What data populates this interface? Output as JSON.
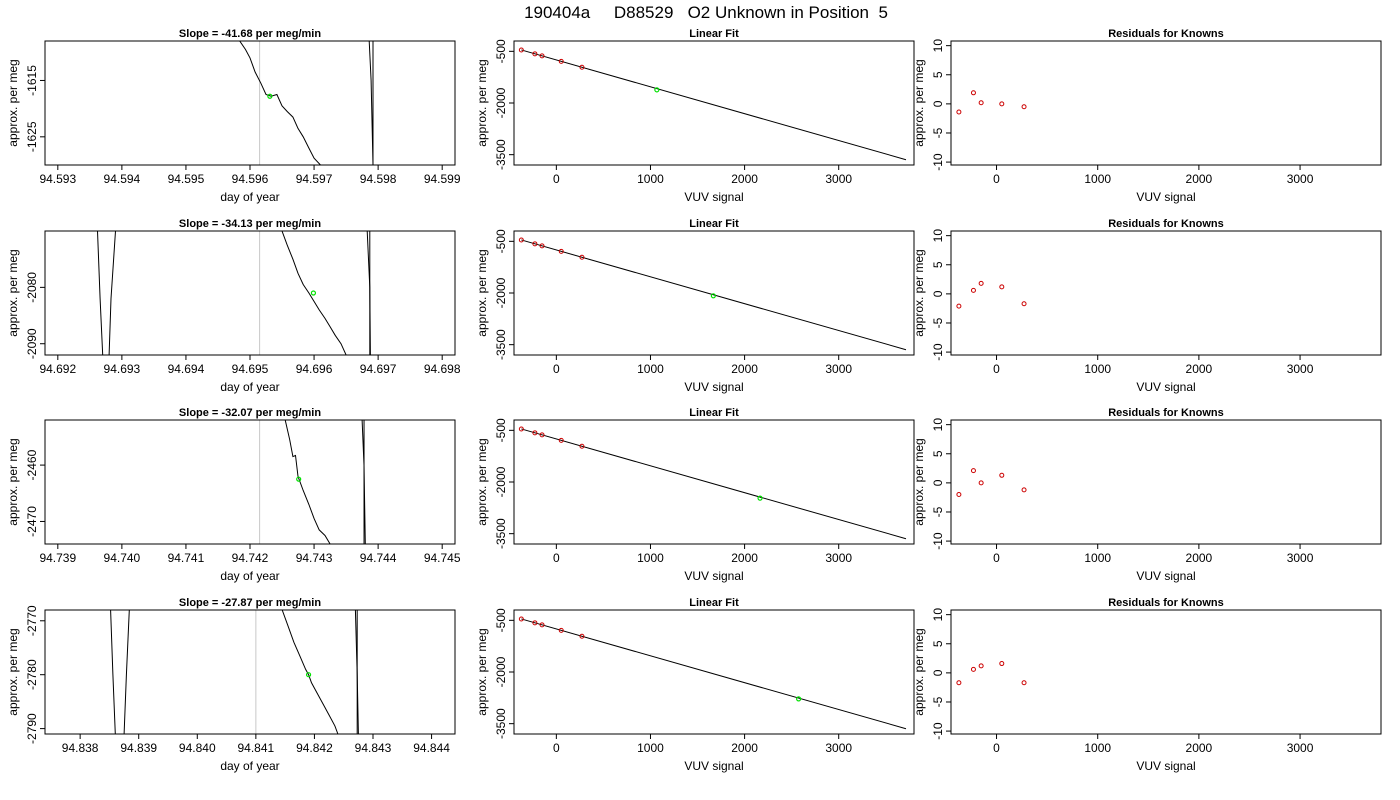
{
  "figure": {
    "title": "190404a     D88529   O2 Unknown in Position  5"
  },
  "colors": {
    "trace": "#000000",
    "unknown_point": "#00e000",
    "known_point": "#cc0000",
    "grey_line": "#c8c8c8"
  },
  "chart_data": [
    {
      "type": "line",
      "row": 0,
      "column": "timeseries",
      "title": "Slope =  -41.68  per meg/min",
      "xlabel": "day of year",
      "ylabel": "approx. per meg",
      "xlim": [
        94.5928,
        94.5992
      ],
      "ylim": [
        -1630,
        -1608
      ],
      "xticks": [
        "94.593",
        "94.594",
        "94.595",
        "94.596",
        "94.597",
        "94.598",
        "94.599"
      ],
      "yticks": [
        "-1615",
        "-1625"
      ],
      "grey_vline": 94.59615,
      "black_vline": 94.59792,
      "trace_segments": [
        [
          [
            94.59584,
            -1608
          ],
          [
            94.59593,
            -1609.5
          ],
          [
            94.596,
            -1611.0
          ],
          [
            94.59608,
            -1613.5
          ],
          [
            94.59617,
            -1615.5
          ],
          [
            94.59625,
            -1617.5
          ],
          [
            94.59633,
            -1617.8
          ],
          [
            94.59642,
            -1617.5
          ],
          [
            94.5965,
            -1619.5
          ],
          [
            94.59658,
            -1620.5
          ],
          [
            94.59667,
            -1621.5
          ],
          [
            94.59675,
            -1623.5
          ],
          [
            94.59683,
            -1625.0
          ],
          [
            94.59692,
            -1627.0
          ],
          [
            94.597,
            -1628.8
          ],
          [
            94.5971,
            -1630
          ]
        ],
        [
          [
            94.59786,
            -1608
          ],
          [
            94.59789,
            -1615
          ],
          [
            94.59792,
            -1630
          ]
        ]
      ],
      "unknown_point": [
        94.59631,
        -1617.8
      ]
    },
    {
      "type": "scatter",
      "row": 0,
      "column": "fit",
      "title": "Linear Fit",
      "xlabel": "VUV signal",
      "ylabel": "approx. per meg",
      "xlim": [
        -450,
        3800
      ],
      "ylim": [
        -3800,
        -200
      ],
      "xticks": [
        "0",
        "1000",
        "2000",
        "3000"
      ],
      "yticks": [
        "-500",
        "-2000",
        "-3500"
      ],
      "fit_line": [
        [
          -372,
          -460
        ],
        [
          3715,
          -3647
        ]
      ],
      "known_points": [
        [
          -372,
          -460
        ],
        [
          -228,
          -572
        ],
        [
          -152,
          -632
        ],
        [
          52,
          -792
        ],
        [
          272,
          -963
        ]
      ],
      "unknown_point": [
        1068,
        -1618
      ]
    },
    {
      "type": "scatter",
      "row": 0,
      "column": "residuals",
      "title": "Residuals for Knowns",
      "xlabel": "VUV signal",
      "ylabel": "approx. per meg",
      "xlim": [
        -450,
        3800
      ],
      "ylim": [
        -10.5,
        10.8
      ],
      "xticks": [
        "0",
        "1000",
        "2000",
        "3000"
      ],
      "yticks": [
        "-10",
        "-5",
        "0",
        "5",
        "10"
      ],
      "known_points": [
        [
          -372,
          -1.4
        ],
        [
          -228,
          1.9
        ],
        [
          -152,
          0.2
        ],
        [
          52,
          0.0
        ],
        [
          272,
          -0.5
        ]
      ]
    },
    {
      "type": "line",
      "row": 1,
      "column": "timeseries",
      "title": "Slope =  -34.13  per meg/min",
      "xlabel": "day of year",
      "ylabel": "approx. per meg",
      "xlim": [
        94.6918,
        94.6982
      ],
      "ylim": [
        -2092,
        -2070
      ],
      "xticks": [
        "94.692",
        "94.693",
        "94.694",
        "94.695",
        "94.696",
        "94.697",
        "94.698"
      ],
      "yticks": [
        "-2080",
        "-2090"
      ],
      "grey_vline": 94.69515,
      "black_vline": 94.69687,
      "trace_segments": [
        [
          [
            94.69262,
            -2070
          ],
          [
            94.69266,
            -2082
          ],
          [
            94.6927,
            -2092
          ]
        ],
        [
          [
            94.6928,
            -2092
          ],
          [
            94.69283,
            -2082
          ],
          [
            94.6929,
            -2070
          ]
        ],
        [
          [
            94.6955,
            -2070
          ],
          [
            94.69558,
            -2072.5
          ],
          [
            94.69567,
            -2075.0
          ],
          [
            94.69575,
            -2077.5
          ],
          [
            94.69583,
            -2079.5
          ],
          [
            94.69592,
            -2081.0
          ],
          [
            94.696,
            -2082.5
          ],
          [
            94.69608,
            -2084.0
          ],
          [
            94.69617,
            -2085.5
          ],
          [
            94.69625,
            -2087.0
          ],
          [
            94.69633,
            -2088.5
          ],
          [
            94.69642,
            -2090.0
          ],
          [
            94.6965,
            -2092
          ]
        ],
        [
          [
            94.69683,
            -2070
          ],
          [
            94.69687,
            -2080
          ],
          [
            94.69688,
            -2092
          ]
        ]
      ],
      "unknown_point": [
        94.69599,
        -2081
      ]
    },
    {
      "type": "scatter",
      "row": 1,
      "column": "fit",
      "title": "Linear Fit",
      "xlabel": "VUV signal",
      "ylabel": "approx. per meg",
      "xlim": [
        -450,
        3800
      ],
      "ylim": [
        -3800,
        -200
      ],
      "xticks": [
        "0",
        "1000",
        "2000",
        "3000"
      ],
      "yticks": [
        "-500",
        "-2000",
        "-3500"
      ],
      "fit_line": [
        [
          -372,
          -460
        ],
        [
          3715,
          -3647
        ]
      ],
      "known_points": [
        [
          -372,
          -460
        ],
        [
          -228,
          -572
        ],
        [
          -152,
          -632
        ],
        [
          52,
          -792
        ],
        [
          272,
          -963
        ]
      ],
      "unknown_point": [
        1668,
        -2081
      ]
    },
    {
      "type": "scatter",
      "row": 1,
      "column": "residuals",
      "title": "Residuals for Knowns",
      "xlabel": "VUV signal",
      "ylabel": "approx. per meg",
      "xlim": [
        -450,
        3800
      ],
      "ylim": [
        -10.5,
        10.8
      ],
      "xticks": [
        "0",
        "1000",
        "2000",
        "3000"
      ],
      "yticks": [
        "-10",
        "-5",
        "0",
        "5",
        "10"
      ],
      "known_points": [
        [
          -372,
          -2.1
        ],
        [
          -228,
          0.6
        ],
        [
          -152,
          1.8
        ],
        [
          52,
          1.2
        ],
        [
          272,
          -1.7
        ]
      ]
    },
    {
      "type": "line",
      "row": 2,
      "column": "timeseries",
      "title": "Slope =  -32.07  per meg/min",
      "xlabel": "day of year",
      "ylabel": "approx. per meg",
      "xlim": [
        94.7388,
        94.7452
      ],
      "ylim": [
        -2474,
        -2452
      ],
      "xticks": [
        "94.739",
        "94.740",
        "94.741",
        "94.742",
        "94.743",
        "94.744",
        "94.745"
      ],
      "yticks": [
        "-2460",
        "-2470"
      ],
      "grey_vline": 94.74215,
      "black_vline": 94.74378,
      "trace_segments": [
        [
          [
            94.74255,
            -2452
          ],
          [
            94.74262,
            -2455.5
          ],
          [
            94.74267,
            -2458.5
          ],
          [
            94.74271,
            -2458.3
          ],
          [
            94.74275,
            -2462.0
          ],
          [
            94.74283,
            -2464.5
          ],
          [
            94.74292,
            -2467.0
          ],
          [
            94.743,
            -2469.5
          ],
          [
            94.74308,
            -2471.5
          ],
          [
            94.74317,
            -2472.5
          ],
          [
            94.74325,
            -2474
          ]
        ],
        [
          [
            94.74375,
            -2452
          ],
          [
            94.74378,
            -2460
          ],
          [
            94.7438,
            -2474
          ]
        ]
      ],
      "unknown_point": [
        94.74276,
        -2462.5
      ]
    },
    {
      "type": "scatter",
      "row": 2,
      "column": "fit",
      "title": "Linear Fit",
      "xlabel": "VUV signal",
      "ylabel": "approx. per meg",
      "xlim": [
        -450,
        3800
      ],
      "ylim": [
        -3800,
        -200
      ],
      "xticks": [
        "0",
        "1000",
        "2000",
        "3000"
      ],
      "yticks": [
        "-500",
        "-2000",
        "-3500"
      ],
      "fit_line": [
        [
          -372,
          -460
        ],
        [
          3715,
          -3647
        ]
      ],
      "known_points": [
        [
          -372,
          -460
        ],
        [
          -228,
          -572
        ],
        [
          -152,
          -632
        ],
        [
          52,
          -792
        ],
        [
          272,
          -963
        ]
      ],
      "unknown_point": [
        2164,
        -2468
      ]
    },
    {
      "type": "scatter",
      "row": 2,
      "column": "residuals",
      "title": "Residuals for Knowns",
      "xlabel": "VUV signal",
      "ylabel": "approx. per meg",
      "xlim": [
        -450,
        3800
      ],
      "ylim": [
        -10.5,
        10.8
      ],
      "xticks": [
        "0",
        "1000",
        "2000",
        "3000"
      ],
      "yticks": [
        "-10",
        "-5",
        "0",
        "5",
        "10"
      ],
      "known_points": [
        [
          -372,
          -2.0
        ],
        [
          -228,
          2.1
        ],
        [
          -152,
          0.0
        ],
        [
          52,
          1.3
        ],
        [
          272,
          -1.2
        ]
      ]
    },
    {
      "type": "line",
      "row": 3,
      "column": "timeseries",
      "title": "Slope =  -27.87  per meg/min",
      "xlabel": "day of year",
      "ylabel": "approx. per meg",
      "xlim": [
        94.8374,
        94.8444
      ],
      "ylim": [
        -2791,
        -2768
      ],
      "xticks": [
        "94.838",
        "94.839",
        "94.840",
        "94.841",
        "94.842",
        "94.843",
        "94.844"
      ],
      "yticks": [
        "-2770",
        "-2780",
        "-2790"
      ],
      "grey_vline": 94.841,
      "black_vline": 94.84273,
      "trace_segments": [
        [
          [
            94.83852,
            -2768
          ],
          [
            94.83856,
            -2780
          ],
          [
            94.8386,
            -2791
          ]
        ],
        [
          [
            94.83875,
            -2791
          ],
          [
            94.83879,
            -2780
          ],
          [
            94.83884,
            -2768
          ]
        ],
        [
          [
            94.84145,
            -2768
          ],
          [
            94.84155,
            -2771.0
          ],
          [
            94.84165,
            -2774.0
          ],
          [
            94.84175,
            -2776.5
          ],
          [
            94.84185,
            -2779.0
          ],
          [
            94.8419,
            -2780.0
          ],
          [
            94.84195,
            -2781.5
          ],
          [
            94.84205,
            -2783.5
          ],
          [
            94.84215,
            -2785.5
          ],
          [
            94.84225,
            -2787.5
          ],
          [
            94.84235,
            -2789.5
          ],
          [
            94.8424,
            -2791
          ]
        ],
        [
          [
            94.8427,
            -2768
          ],
          [
            94.84273,
            -2780
          ],
          [
            94.84275,
            -2791
          ]
        ]
      ],
      "unknown_point": [
        94.8419,
        -2780
      ]
    },
    {
      "type": "scatter",
      "row": 3,
      "column": "fit",
      "title": "Linear Fit",
      "xlabel": "VUV signal",
      "ylabel": "approx. per meg",
      "xlim": [
        -450,
        3800
      ],
      "ylim": [
        -3800,
        -200
      ],
      "xticks": [
        "0",
        "1000",
        "2000",
        "3000"
      ],
      "yticks": [
        "-500",
        "-2000",
        "-3500"
      ],
      "fit_line": [
        [
          -372,
          -460
        ],
        [
          3715,
          -3647
        ]
      ],
      "known_points": [
        [
          -372,
          -460
        ],
        [
          -228,
          -572
        ],
        [
          -152,
          -632
        ],
        [
          52,
          -792
        ],
        [
          272,
          -963
        ]
      ],
      "unknown_point": [
        2574,
        -2780
      ]
    },
    {
      "type": "scatter",
      "row": 3,
      "column": "residuals",
      "title": "Residuals for Knowns",
      "xlabel": "VUV signal",
      "ylabel": "approx. per meg",
      "xlim": [
        -450,
        3800
      ],
      "ylim": [
        -10.5,
        10.8
      ],
      "xticks": [
        "0",
        "1000",
        "2000",
        "3000"
      ],
      "yticks": [
        "-10",
        "-5",
        "0",
        "5",
        "10"
      ],
      "known_points": [
        [
          -372,
          -1.7
        ],
        [
          -228,
          0.6
        ],
        [
          -152,
          1.2
        ],
        [
          52,
          1.6
        ],
        [
          272,
          -1.7
        ]
      ]
    }
  ]
}
